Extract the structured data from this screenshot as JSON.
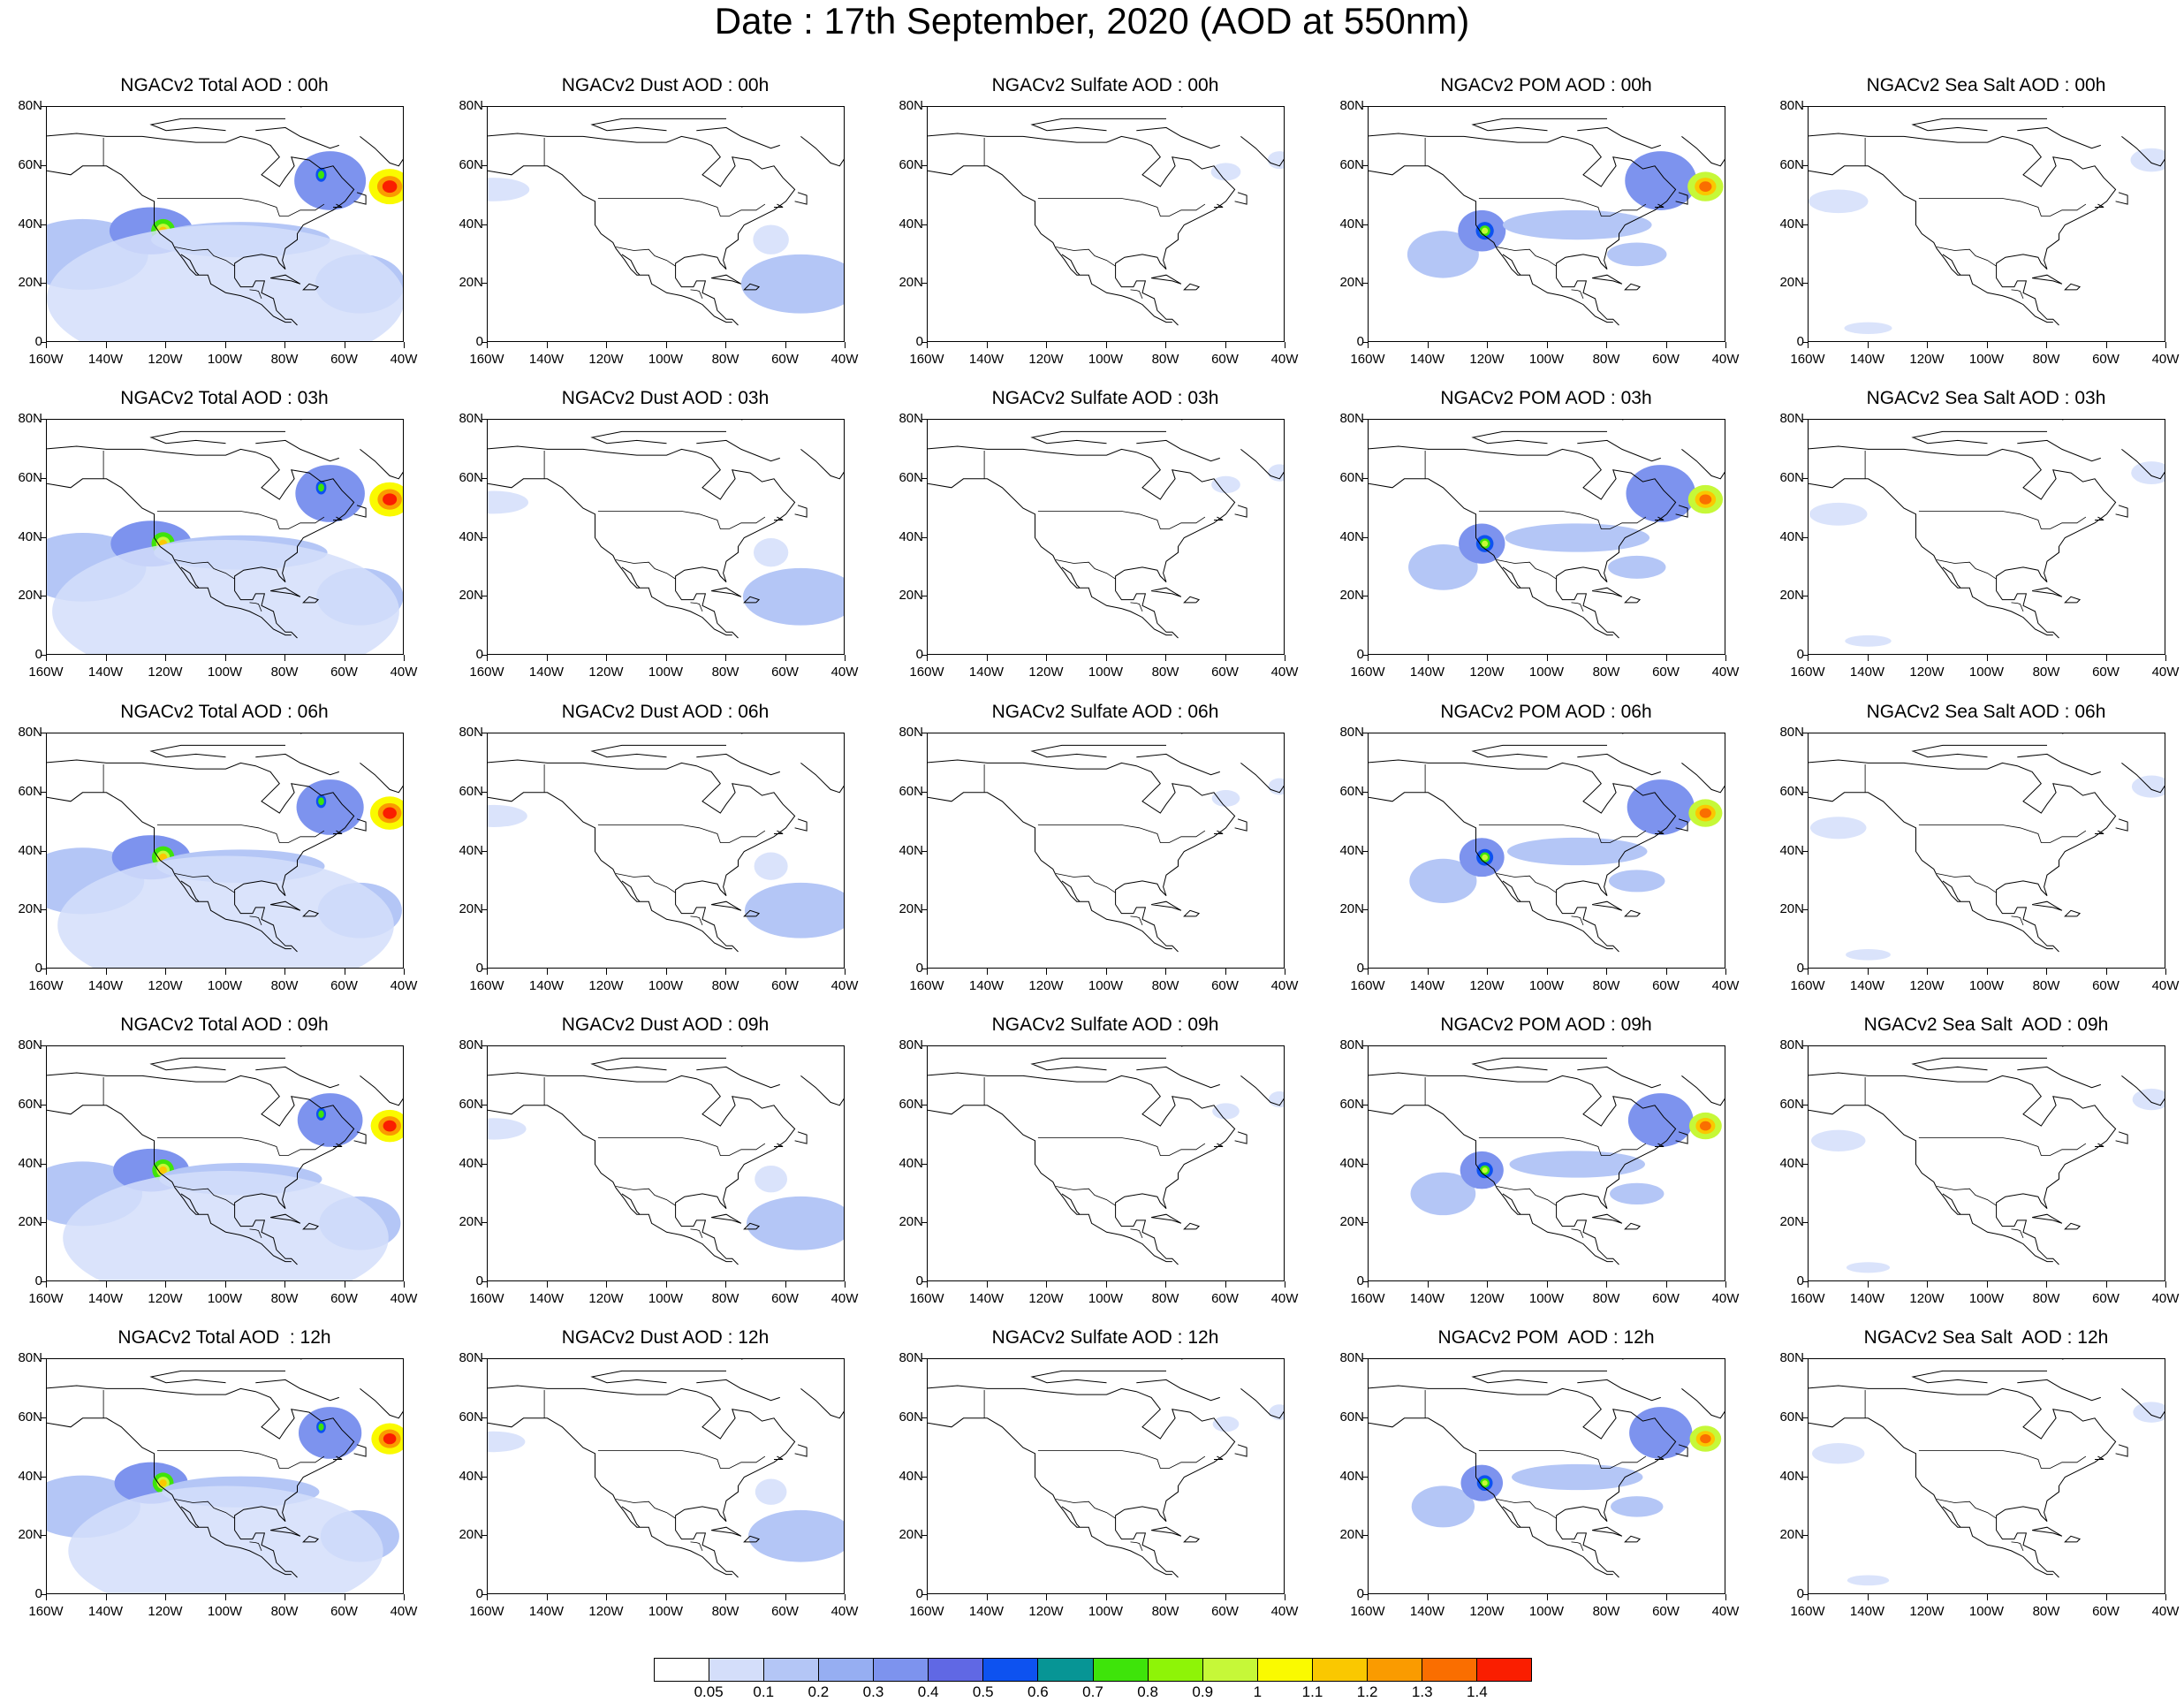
{
  "title": "Date : 17th September, 2020 (AOD at 550nm)",
  "rows": [
    {
      "hour": "00h",
      "titles": [
        "NGACv2 Total AOD : 00h",
        "NGACv2 Dust AOD : 00h",
        "NGACv2 Sulfate AOD : 00h",
        "NGACv2 POM AOD : 00h",
        "NGACv2 Sea Salt AOD : 00h"
      ]
    },
    {
      "hour": "03h",
      "titles": [
        "NGACv2 Total AOD : 03h",
        "NGACv2 Dust AOD : 03h",
        "NGACv2 Sulfate AOD : 03h",
        "NGACv2 POM AOD : 03h",
        "NGACv2 Sea Salt AOD : 03h"
      ]
    },
    {
      "hour": "06h",
      "titles": [
        "NGACv2 Total AOD : 06h",
        "NGACv2 Dust AOD : 06h",
        "NGACv2 Sulfate AOD : 06h",
        "NGACv2 POM AOD : 06h",
        "NGACv2 Sea Salt AOD : 06h"
      ]
    },
    {
      "hour": "09h",
      "titles": [
        "NGACv2 Total AOD : 09h",
        "NGACv2 Dust AOD : 09h",
        "NGACv2 Sulfate AOD : 09h",
        "NGACv2 POM AOD : 09h",
        "NGACv2 Sea Salt  AOD : 09h"
      ]
    },
    {
      "hour": "12h",
      "titles": [
        "NGACv2 Total AOD  : 12h",
        "NGACv2 Dust AOD : 12h",
        "NGACv2 Sulfate AOD : 12h",
        "NGACv2 POM  AOD : 12h",
        "NGACv2 Sea Salt  AOD : 12h"
      ]
    }
  ],
  "species": [
    "Total",
    "Dust",
    "Sulfate",
    "POM",
    "Sea Salt"
  ],
  "axes": {
    "lat_labels": [
      "0",
      "20N",
      "40N",
      "60N",
      "80N"
    ],
    "lat_values": [
      0,
      20,
      40,
      60,
      80
    ],
    "lon_labels": [
      "160W",
      "140W",
      "120W",
      "100W",
      "80W",
      "60W",
      "40W"
    ],
    "lon_values": [
      -160,
      -140,
      -120,
      -100,
      -80,
      -60,
      -40
    ],
    "lon_range": [
      -160,
      -40
    ],
    "lat_range": [
      0,
      80
    ]
  },
  "colorbar": {
    "labels": [
      "0.05",
      "0.1",
      "0.2",
      "0.3",
      "0.4",
      "0.5",
      "0.6",
      "0.7",
      "0.8",
      "0.9",
      "1",
      "1.1",
      "1.2",
      "1.3",
      "1.4"
    ],
    "colors": [
      "#ffffff",
      "#d4defa",
      "#b4c6f6",
      "#96aef2",
      "#7d93ee",
      "#6068e4",
      "#0d52f0",
      "#079595",
      "#3ee40a",
      "#8ef407",
      "#c6f838",
      "#fafa00",
      "#fac800",
      "#fa9b00",
      "#fa6e00",
      "#fa1e00"
    ]
  },
  "plumes": {
    "Total": [
      {
        "lon": -148,
        "lat": 30,
        "rx": 22,
        "ry": 12,
        "level": 2
      },
      {
        "lon": -125,
        "lat": 38,
        "rx": 14,
        "ry": 8,
        "level": 4
      },
      {
        "lon": -121,
        "lat": 38,
        "rx": 4,
        "ry": 4,
        "level": 12
      },
      {
        "lon": -95,
        "lat": 35,
        "rx": 30,
        "ry": 6,
        "level": 2
      },
      {
        "lon": -65,
        "lat": 55,
        "rx": 12,
        "ry": 10,
        "level": 4
      },
      {
        "lon": -68,
        "lat": 57,
        "rx": 3,
        "ry": 4,
        "level": 8
      },
      {
        "lon": -45,
        "lat": 53,
        "rx": 7,
        "ry": 6,
        "level": 15
      },
      {
        "lon": -55,
        "lat": 20,
        "rx": 15,
        "ry": 10,
        "level": 2
      },
      {
        "lon": -100,
        "lat": 15,
        "rx": 60,
        "ry": 25,
        "level": 1
      }
    ],
    "Dust": [
      {
        "lon": -158,
        "lat": 52,
        "rx": 12,
        "ry": 4,
        "level": 1
      },
      {
        "lon": -55,
        "lat": 20,
        "rx": 20,
        "ry": 10,
        "level": 2
      },
      {
        "lon": -65,
        "lat": 35,
        "rx": 6,
        "ry": 5,
        "level": 1
      }
    ],
    "Sulfate": [
      {
        "lon": -60,
        "lat": 58,
        "rx": 5,
        "ry": 3,
        "level": 1
      },
      {
        "lon": -42,
        "lat": 62,
        "rx": 4,
        "ry": 3,
        "level": 1
      }
    ],
    "POM": [
      {
        "lon": -135,
        "lat": 30,
        "rx": 12,
        "ry": 8,
        "level": 2
      },
      {
        "lon": -122,
        "lat": 38,
        "rx": 8,
        "ry": 7,
        "level": 4
      },
      {
        "lon": -121,
        "lat": 38,
        "rx": 3,
        "ry": 3,
        "level": 10
      },
      {
        "lon": -90,
        "lat": 40,
        "rx": 25,
        "ry": 5,
        "level": 2
      },
      {
        "lon": -62,
        "lat": 55,
        "rx": 12,
        "ry": 10,
        "level": 4
      },
      {
        "lon": -47,
        "lat": 53,
        "rx": 6,
        "ry": 5,
        "level": 14
      },
      {
        "lon": -70,
        "lat": 30,
        "rx": 10,
        "ry": 4,
        "level": 2
      }
    ],
    "Sea Salt": [
      {
        "lon": -150,
        "lat": 48,
        "rx": 10,
        "ry": 4,
        "level": 1
      },
      {
        "lon": -45,
        "lat": 62,
        "rx": 7,
        "ry": 4,
        "level": 1
      },
      {
        "lon": -140,
        "lat": 5,
        "rx": 8,
        "ry": 2,
        "level": 1
      }
    ]
  }
}
